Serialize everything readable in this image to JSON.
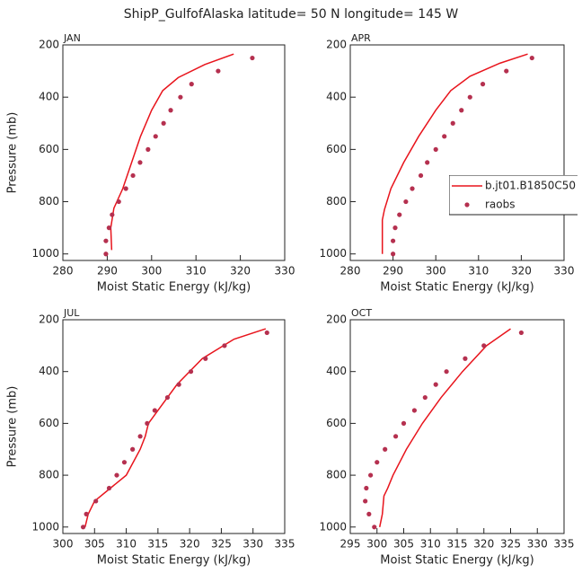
{
  "title": "ShipP_GulfofAlaska  latitude= 50 N longitude= 145 W",
  "chart_data": [
    {
      "type": "line",
      "title": "JAN",
      "xlabel": "Moist Static Energy (kJ/kg)",
      "ylabel": "Pressure (mb)",
      "xlim": [
        280,
        330
      ],
      "xticks": [
        280,
        290,
        300,
        310,
        320,
        330
      ],
      "ylim": [
        1025,
        200
      ],
      "yticks": [
        200,
        400,
        600,
        800,
        1000
      ],
      "series": [
        {
          "name": "b.jt01.B1850C50",
          "color": "#e8141c",
          "style": "line",
          "x": [
            318.5,
            312,
            306,
            302.5,
            300,
            297.5,
            295.5,
            293.5,
            291.5,
            290.8,
            291
          ],
          "y": [
            235,
            275,
            325,
            375,
            450,
            550,
            650,
            750,
            825,
            900,
            985
          ]
        },
        {
          "name": "raobs",
          "color": "#b5304f",
          "style": "points",
          "x": [
            322.7,
            315,
            309,
            306.5,
            304.3,
            302.7,
            300.9,
            299.2,
            297.4,
            295.8,
            294.2,
            292.6,
            291.1,
            290.4,
            289.7,
            289.7
          ],
          "y": [
            250,
            300,
            350,
            400,
            450,
            500,
            550,
            600,
            650,
            700,
            750,
            800,
            850,
            900,
            950,
            1000
          ]
        }
      ]
    },
    {
      "type": "line",
      "title": "APR",
      "xlabel": "Moist Static Energy (kJ/kg)",
      "legend": "right",
      "xlim": [
        280,
        330
      ],
      "xticks": [
        280,
        290,
        300,
        310,
        320,
        330
      ],
      "ylim": [
        1025,
        200
      ],
      "yticks": [
        200,
        400,
        600,
        800,
        1000
      ],
      "series": [
        {
          "name": "b.jt01.B1850C50",
          "color": "#e8141c",
          "style": "line",
          "x": [
            321.5,
            315,
            308,
            303.5,
            300,
            296,
            292.5,
            289.5,
            288,
            287.5,
            287.5
          ],
          "y": [
            235,
            270,
            320,
            375,
            450,
            550,
            650,
            750,
            830,
            870,
            1000
          ]
        },
        {
          "name": "raobs",
          "color": "#b5304f",
          "style": "points",
          "x": [
            322.5,
            316.5,
            311,
            308,
            306,
            304,
            302,
            300,
            298,
            296.5,
            294.5,
            293,
            291.5,
            290.5,
            290,
            290
          ],
          "y": [
            250,
            300,
            350,
            400,
            450,
            500,
            550,
            600,
            650,
            700,
            750,
            800,
            850,
            900,
            950,
            1000
          ]
        }
      ]
    },
    {
      "type": "line",
      "title": "JUL",
      "xlabel": "Moist Static Energy (kJ/kg)",
      "ylabel": "Pressure (mb)",
      "xlim": [
        300,
        335
      ],
      "xticks": [
        300,
        305,
        310,
        315,
        320,
        325,
        330,
        335
      ],
      "ylim": [
        1025,
        200
      ],
      "yticks": [
        200,
        400,
        600,
        800,
        1000
      ],
      "series": [
        {
          "name": "b.jt01.B1850C50",
          "color": "#e8141c",
          "style": "line",
          "x": [
            332,
            327,
            322,
            318,
            315,
            313.5,
            313,
            312.2,
            310,
            307.5,
            305,
            304,
            303.5
          ],
          "y": [
            235,
            275,
            350,
            450,
            550,
            600,
            650,
            700,
            800,
            850,
            900,
            950,
            1000
          ]
        },
        {
          "name": "raobs",
          "color": "#b5304f",
          "style": "points",
          "x": [
            332.2,
            325.5,
            322.5,
            320.2,
            318.3,
            316.5,
            314.5,
            313.3,
            312.2,
            311,
            309.7,
            308.5,
            307.3,
            305.2,
            303.7,
            303.2
          ],
          "y": [
            250,
            300,
            350,
            400,
            450,
            500,
            550,
            600,
            650,
            700,
            750,
            800,
            850,
            900,
            950,
            1000
          ]
        }
      ]
    },
    {
      "type": "line",
      "title": "OCT",
      "xlabel": "Moist Static Energy (kJ/kg)",
      "xlim": [
        295,
        335
      ],
      "xticks": [
        295,
        300,
        305,
        310,
        315,
        320,
        325,
        330,
        335
      ],
      "ylim": [
        1025,
        200
      ],
      "yticks": [
        200,
        400,
        600,
        800,
        1000
      ],
      "series": [
        {
          "name": "b.jt01.B1850C50",
          "color": "#e8141c",
          "style": "line",
          "x": [
            325,
            320.5,
            316,
            312,
            308.5,
            305.5,
            303,
            302,
            301.3,
            301,
            300.5
          ],
          "y": [
            235,
            300,
            400,
            500,
            600,
            700,
            800,
            850,
            880,
            950,
            1000
          ]
        },
        {
          "name": "raobs",
          "color": "#b5304f",
          "style": "points",
          "x": [
            327,
            320,
            316.5,
            313,
            311,
            309,
            307,
            305,
            303.5,
            301.5,
            300,
            298.8,
            298,
            297.8,
            298.5,
            299.5
          ],
          "y": [
            250,
            300,
            350,
            400,
            450,
            500,
            550,
            600,
            650,
            700,
            750,
            800,
            850,
            900,
            950,
            1000
          ]
        }
      ]
    }
  ]
}
